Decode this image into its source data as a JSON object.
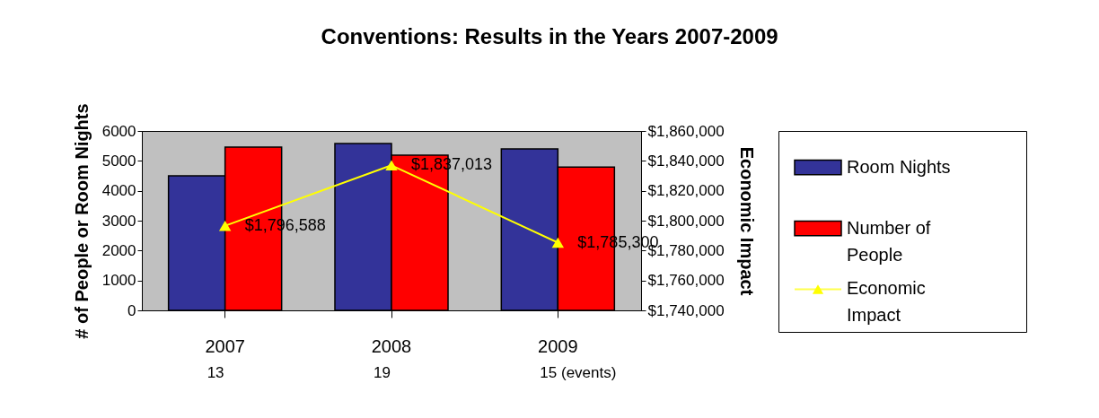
{
  "chart_data": {
    "type": "bar",
    "title": "Conventions: Results in the Years 2007-2009",
    "categories": [
      "2007",
      "2008",
      "2009"
    ],
    "series": [
      {
        "name": "Room Nights",
        "color": "#333399",
        "values": [
          4500,
          5580,
          5400
        ]
      },
      {
        "name": "Number of People",
        "color": "#ff0000",
        "values": [
          5460,
          5190,
          4790
        ]
      },
      {
        "name": "Economic Impact",
        "type": "line",
        "axis": "y2",
        "color": "#ffff00",
        "marker": "triangle",
        "values": [
          1796588,
          1837013,
          1785300
        ],
        "value_labels": [
          "$1,796,588",
          "$1,837,013",
          "$1,785,300"
        ]
      }
    ],
    "ylabel": "# of People or Room Nights",
    "y2label": "Economic Impact",
    "ylim": [
      0,
      6000
    ],
    "yticks": [
      0,
      1000,
      2000,
      3000,
      4000,
      5000,
      6000
    ],
    "y2lim": [
      1740000,
      1860000
    ],
    "y2ticks": [
      {
        "value": 1740000,
        "label": "$1,740,000"
      },
      {
        "value": 1760000,
        "label": "$1,760,000"
      },
      {
        "value": 1780000,
        "label": "$1,780,000"
      },
      {
        "value": 1800000,
        "label": "$1,800,000"
      },
      {
        "value": 1820000,
        "label": "$1,820,000"
      },
      {
        "value": 1840000,
        "label": "$1,840,000"
      },
      {
        "value": 1860000,
        "label": "$1,860,000"
      }
    ],
    "annotations": [
      "13",
      "19",
      "15 (events)"
    ],
    "grid": false,
    "legend": "right"
  }
}
